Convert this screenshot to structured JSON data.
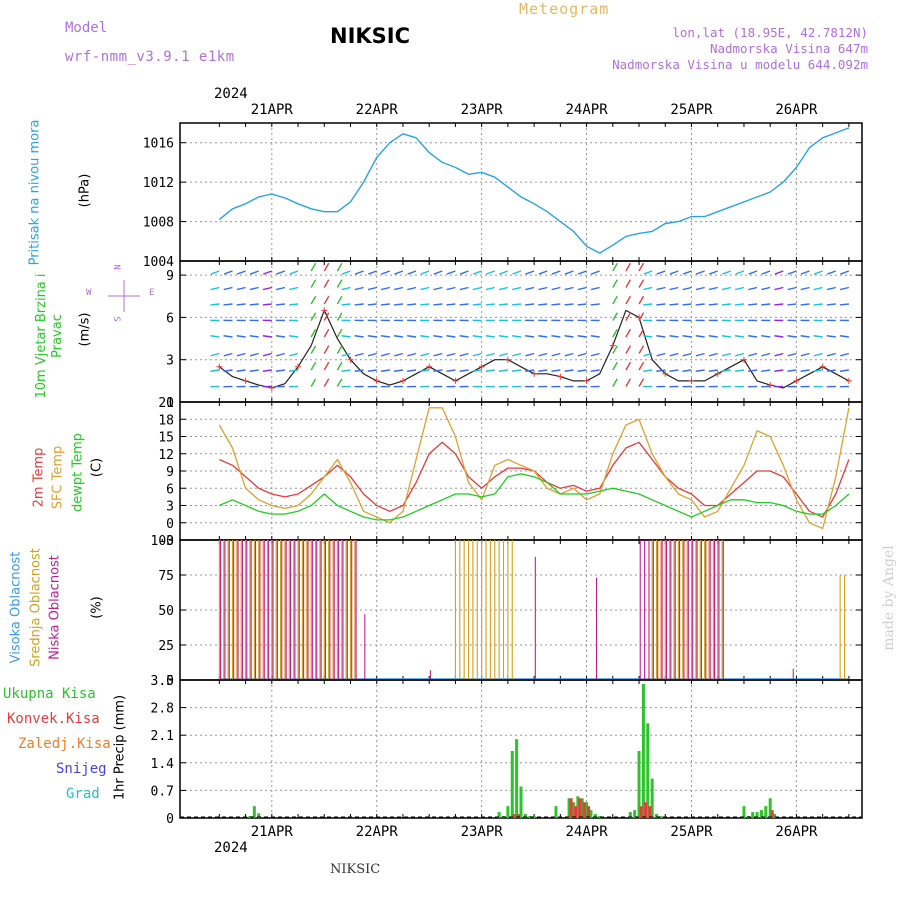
{
  "header": {
    "model_label": "Model",
    "model_name": "wrf-nmm_v3.9.1  e1km",
    "station": "NIKSIC",
    "meteogram_label": "Meteogram",
    "lonlat": "lon,lat (18.95E, 42.7812N)",
    "altitude": "Nadmorska Visina 647m",
    "altitude_model": "Nadmorska Visina u modelu 644.092m",
    "footer_station": "NIKSIC",
    "watermark": "made by Angel",
    "year_top": "2024",
    "year_bottom": "2024"
  },
  "colors": {
    "pressure": "#29a3e6",
    "t2m": "#e83b3b",
    "sfc": "#e0a030",
    "dew": "#22cc22",
    "high_cloud": "#3a9be8",
    "mid_cloud": "#d4a020",
    "low_cloud": "#c0208e",
    "total_precip": "#2ec22e",
    "conv_precip": "#e83b3b",
    "frozen_precip": "#f07f2a",
    "snow": "#4444dd",
    "graupel": "#22c0c0"
  },
  "chart_data": [
    {
      "type": "line",
      "panel": "pressure",
      "ylabel": "Pritisak na nivou mora",
      "units": "(hPa)",
      "x_tick_labels": [
        "21APR",
        "22APR",
        "23APR",
        "24APR",
        "25APR",
        "26APR"
      ],
      "ylim": [
        1004,
        1018
      ],
      "yticks": [
        1004,
        1008,
        1012,
        1016
      ],
      "grid": true,
      "x_hours": [
        0,
        3,
        6,
        9,
        12,
        15,
        18,
        21,
        24,
        27,
        30,
        33,
        36,
        39,
        42,
        45,
        48,
        51,
        54,
        57,
        60,
        63,
        66,
        69,
        72,
        75,
        78,
        81,
        84,
        87,
        90,
        93,
        96,
        99,
        102,
        105,
        108,
        111,
        114,
        117,
        120,
        123,
        126,
        129,
        132,
        135,
        138,
        141,
        144
      ],
      "values": [
        1008.2,
        1009.3,
        1009.8,
        1010.5,
        1010.8,
        1010.4,
        1009.8,
        1009.3,
        1009.0,
        1009.0,
        1010.0,
        1012.0,
        1014.5,
        1016.0,
        1016.9,
        1016.5,
        1015.0,
        1014.0,
        1013.5,
        1012.8,
        1013.0,
        1012.5,
        1011.5,
        1010.5,
        1009.8,
        1009.0,
        1008.0,
        1007.0,
        1005.5,
        1004.8,
        1005.6,
        1006.5,
        1006.8,
        1007.0,
        1007.8,
        1008.0,
        1008.5,
        1008.5,
        1009.0,
        1009.5,
        1010.0,
        1010.5,
        1011.0,
        1012.0,
        1013.5,
        1015.5,
        1016.5,
        1017.0,
        1017.5
      ]
    },
    {
      "type": "line",
      "panel": "wind",
      "ylabel": "10m Vjetar Brzina i Pravac",
      "units": "(m/s)",
      "compass": {
        "n": "N",
        "s": "S",
        "e": "E",
        "w": "W"
      },
      "ylim": [
        0,
        10
      ],
      "yticks": [
        0,
        3,
        6,
        9
      ],
      "grid": true,
      "series": [
        {
          "name": "wind speed",
          "x_hours": [
            0,
            3,
            6,
            9,
            12,
            15,
            18,
            21,
            24,
            27,
            30,
            33,
            36,
            39,
            42,
            45,
            48,
            51,
            54,
            57,
            60,
            63,
            66,
            69,
            72,
            75,
            78,
            81,
            84,
            87,
            90,
            93,
            96,
            99,
            102,
            105,
            108,
            111,
            114,
            117,
            120,
            123,
            126,
            129,
            132,
            135,
            138,
            141,
            144
          ],
          "values": [
            2.5,
            1.8,
            1.5,
            1.2,
            1.0,
            1.3,
            2.5,
            4.0,
            6.5,
            4.5,
            3.0,
            2.0,
            1.5,
            1.2,
            1.5,
            2.0,
            2.5,
            2.0,
            1.5,
            2.0,
            2.5,
            3.0,
            3.0,
            2.5,
            2.0,
            2.0,
            1.8,
            1.5,
            1.5,
            2.0,
            4.0,
            6.5,
            6.0,
            3.0,
            2.0,
            1.5,
            1.5,
            1.5,
            2.0,
            2.5,
            3.0,
            1.5,
            1.2,
            1.0,
            1.5,
            2.0,
            2.5,
            2.0,
            1.5
          ]
        }
      ]
    },
    {
      "type": "line",
      "panel": "temperature",
      "units": "(C)",
      "ylim": [
        -3,
        21
      ],
      "yticks": [
        -3,
        0,
        3,
        6,
        9,
        12,
        15,
        18,
        21
      ],
      "grid": true,
      "x_hours": [
        0,
        3,
        6,
        9,
        12,
        15,
        18,
        21,
        24,
        27,
        30,
        33,
        36,
        39,
        42,
        45,
        48,
        51,
        54,
        57,
        60,
        63,
        66,
        69,
        72,
        75,
        78,
        81,
        84,
        87,
        90,
        93,
        96,
        99,
        102,
        105,
        108,
        111,
        114,
        117,
        120,
        123,
        126,
        129,
        132,
        135,
        138,
        141,
        144
      ],
      "series": [
        {
          "name": "2m Temp",
          "values": [
            11,
            10,
            8,
            6,
            5,
            4.5,
            5,
            6.5,
            8,
            10,
            8,
            5,
            3,
            2,
            3,
            7,
            12,
            14,
            12,
            8,
            6,
            8,
            9.5,
            9.5,
            9,
            7,
            6,
            6.5,
            5.5,
            6,
            10,
            13,
            14,
            11,
            8,
            6,
            5,
            3,
            3,
            5,
            7,
            9,
            9,
            8,
            5,
            2,
            1,
            5,
            11
          ]
        },
        {
          "name": "SFC Temp",
          "values": [
            17,
            13,
            6,
            4,
            3,
            2.5,
            3,
            5,
            8,
            11,
            7,
            2,
            1,
            0,
            2,
            11,
            20,
            20,
            15,
            7,
            4,
            10,
            11,
            10,
            9,
            6,
            5,
            6,
            4,
            5,
            12,
            17,
            18,
            12,
            8,
            5,
            4,
            1,
            2,
            6,
            10,
            16,
            15,
            10,
            4,
            0,
            -1,
            8,
            20
          ]
        },
        {
          "name": "dewpt Temp",
          "values": [
            3,
            4,
            3,
            2,
            1.5,
            1.5,
            2,
            3,
            5,
            3,
            2,
            1,
            0.5,
            0.5,
            1,
            2,
            3,
            4,
            5,
            5,
            4.5,
            5,
            8,
            8.5,
            8,
            7,
            5,
            5,
            5,
            5.5,
            6,
            5.5,
            5,
            4,
            3,
            2,
            1,
            2,
            3,
            4,
            4,
            3.5,
            3.5,
            3,
            2,
            1.5,
            1.5,
            3,
            5
          ]
        }
      ]
    },
    {
      "type": "bar",
      "panel": "cloud",
      "units": "(%)",
      "ylim": [
        0,
        100
      ],
      "yticks": [
        0,
        25,
        50,
        75,
        100
      ],
      "grid": true,
      "series": [
        {
          "name": "Visoka Oblacnost",
          "segments": [
            [
              0,
              144,
              0
            ]
          ]
        },
        {
          "name": "Srednja Oblacnost",
          "segments": [
            [
              0,
              31,
              100
            ],
            [
              54,
              67,
              100
            ],
            [
              99,
              115,
              100
            ],
            [
              142,
              143,
              75
            ]
          ]
        },
        {
          "name": "Niska Oblacnost",
          "segments": [
            [
              0,
              31,
              100
            ],
            [
              33,
              33.5,
              47
            ],
            [
              48,
              48.5,
              7
            ],
            [
              72,
              72.5,
              88
            ],
            [
              86,
              86.5,
              73
            ],
            [
              96,
              115,
              100
            ],
            [
              131,
              131.5,
              8
            ]
          ]
        }
      ]
    },
    {
      "type": "bar",
      "panel": "precip",
      "ylabel": "1hr Precip",
      "units": "(mm)",
      "ylim": [
        0,
        3.5
      ],
      "yticks": [
        0,
        0.7,
        1.4,
        2.1,
        2.8,
        3.5
      ],
      "grid": true,
      "series": [
        {
          "name": "Ukupna Kisa",
          "x_hours": [
            7,
            8,
            9,
            64,
            65,
            66,
            67,
            68,
            69,
            70,
            71,
            72,
            77,
            80,
            81,
            82,
            83,
            84,
            85,
            86,
            87,
            94,
            95,
            96,
            97,
            98,
            99,
            100,
            101,
            120,
            121,
            122,
            123,
            124,
            125,
            126,
            127
          ],
          "values": [
            0.05,
            0.3,
            0.12,
            0.15,
            0.05,
            0.3,
            1.7,
            2.0,
            0.8,
            0.1,
            0.05,
            0.05,
            0.3,
            0.5,
            0.4,
            0.55,
            0.5,
            0.4,
            0.2,
            0.1,
            0.05,
            0.15,
            0.2,
            1.7,
            3.4,
            2.4,
            1.0,
            0.1,
            0.05,
            0.3,
            0.05,
            0.15,
            0.15,
            0.2,
            0.3,
            0.5,
            0.1
          ]
        },
        {
          "name": "Konvek.Kisa",
          "x_hours": [
            67,
            68,
            80,
            81,
            82,
            83,
            84,
            96,
            97,
            98,
            126
          ],
          "values": [
            0.1,
            0.1,
            0.5,
            0.3,
            0.5,
            0.4,
            0.3,
            0.3,
            0.4,
            0.3,
            0.2
          ]
        },
        {
          "name": "Zaledj.Kisa",
          "x_hours": [],
          "values": []
        },
        {
          "name": "Snijeg",
          "x_hours": [],
          "values": []
        },
        {
          "name": "Grad",
          "x_hours": [],
          "values": []
        }
      ]
    }
  ]
}
